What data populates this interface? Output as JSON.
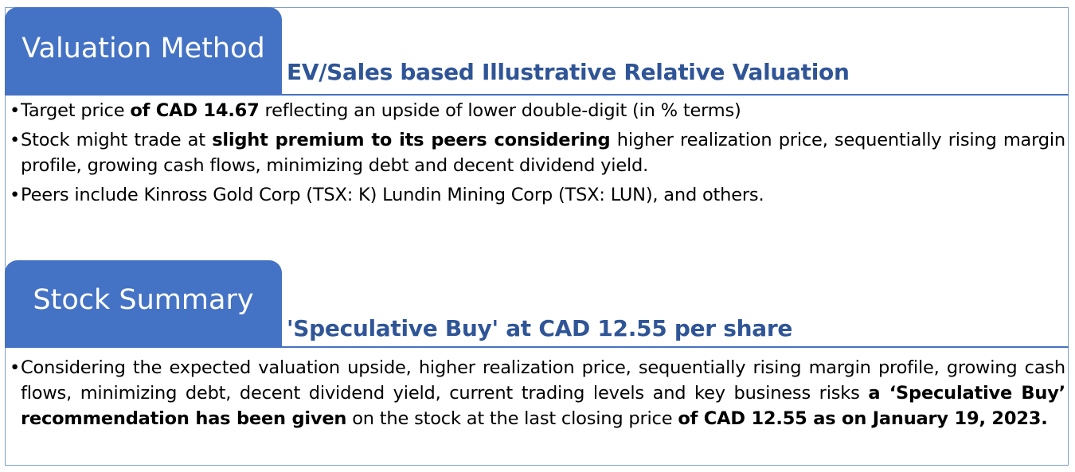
{
  "valuation": {
    "tab_label": "Valuation Method",
    "heading": "EV/Sales based Illustrative Relative Valuation",
    "bullets": [
      {
        "t1": "Target price ",
        "b1": "of CAD 14.67",
        "t2": " reflecting an upside of lower double-digit (in % terms)"
      },
      {
        "t1": "Stock might trade at ",
        "b1": "slight premium to its peers considering",
        "t2": "  higher realization price, sequentially rising margin profile, growing cash flows, minimizing debt and decent dividend yield."
      },
      {
        "t1": "Peers include Kinross Gold Corp (TSX: K) Lundin Mining Corp (TSX: LUN), and others."
      }
    ]
  },
  "summary": {
    "tab_label": "Stock Summary",
    "heading": "'Speculative Buy' at CAD 12.55 per share",
    "bullets": [
      {
        "t1": "Considering the expected valuation upside, higher realization price, sequentially rising margin profile, growing cash flows, minimizing debt, decent dividend yield, current trading levels and key business risks ",
        "b1": "a ‘Speculative Buy’ recommendation has been given",
        "t2": " on the stock at the last closing price ",
        "b2": "of CAD 12.55 as on January 19, 2023."
      }
    ]
  },
  "colors": {
    "tab_blue": "#4472c4",
    "heading_blue": "#2f5597",
    "frame_border": "#7f9fc9"
  }
}
